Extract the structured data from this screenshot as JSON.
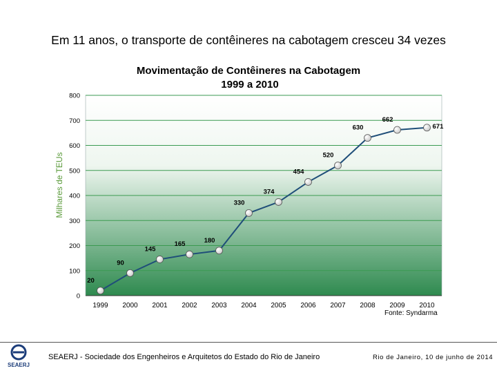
{
  "slide": {
    "title": "Em 11 anos, o transporte de contêineres na cabotagem cresceu 34 vezes"
  },
  "chart_data": {
    "type": "line",
    "title": "Movimentação de Contêineres na Cabotagem",
    "subtitle": "1999 a 2010",
    "xlabel": "",
    "ylabel": "Milhares de TEUs",
    "categories": [
      "1999",
      "2000",
      "2001",
      "2002",
      "2003",
      "2004",
      "2005",
      "2006",
      "2007",
      "2008",
      "2009",
      "2010"
    ],
    "values": [
      20,
      90,
      145,
      165,
      180,
      330,
      374,
      454,
      520,
      630,
      662,
      671
    ],
    "ylim": [
      0,
      800
    ],
    "yticks": [
      0,
      100,
      200,
      300,
      400,
      500,
      600,
      700,
      800
    ],
    "grid": true,
    "colors": {
      "line": "#1f4e79",
      "grid": "#3a9a50",
      "ylabel": "#5a9a3a",
      "bg_top": "#ffffff",
      "bg_bottom": "#2e8a4f"
    }
  },
  "source": "Fonte: Syndarma",
  "footer": {
    "logo_text": "SEAERJ",
    "organization": "SEAERJ - Sociedade dos Engenheiros e Arquitetos do Estado do Rio de Janeiro",
    "date": "Rio de Janeiro, 10 de junho de 2014"
  }
}
